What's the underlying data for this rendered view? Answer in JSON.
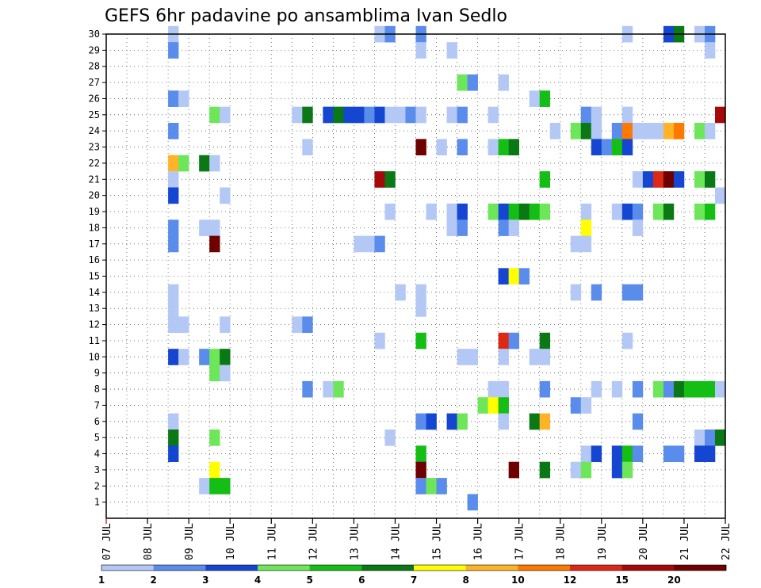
{
  "chart_data": {
    "type": "heatmap",
    "title": "GEFS 6hr padavine po ansamblima Ivan Sedlo",
    "xlabel": "",
    "ylabel": "",
    "x_ticks": [
      "07 JUL",
      "08 JUL",
      "09 JUL",
      "10 JUL",
      "11 JUL",
      "12 JUL",
      "13 JUL",
      "14 JUL",
      "15 JUL",
      "16 JUL",
      "17 JUL",
      "18 JUL",
      "19 JUL",
      "20 JUL",
      "21 JUL",
      "22 JUL"
    ],
    "xlim_days": [
      7,
      22
    ],
    "ylim": [
      0,
      30
    ],
    "y_ticks": [
      1,
      2,
      3,
      4,
      5,
      6,
      7,
      8,
      9,
      10,
      11,
      12,
      13,
      14,
      15,
      16,
      17,
      18,
      19,
      20,
      21,
      22,
      23,
      24,
      25,
      26,
      27,
      28,
      29,
      30
    ],
    "time_step_hours": 6,
    "grid": "dotted",
    "legend": {
      "placement": "bottom",
      "labels": [
        "1",
        "2",
        "3",
        "4",
        "5",
        "6",
        "7",
        "8",
        "10",
        "12",
        "15",
        "20"
      ],
      "colors": [
        "#b4c8f5",
        "#5a8ceb",
        "#1446d2",
        "#6ee65a",
        "#14be14",
        "#0a7814",
        "#ffff00",
        "#ffb428",
        "#ff7800",
        "#dc2814",
        "#a50a0a",
        "#6e0000"
      ]
    },
    "cells_note": "each entry: [member, day_of_july_start (1/4 day steps), intensity_class 1-12]",
    "cells": [
      [
        30,
        8.5,
        1
      ],
      [
        30,
        13.5,
        1
      ],
      [
        30,
        13.75,
        2
      ],
      [
        30,
        14.5,
        2
      ],
      [
        30,
        19.5,
        1
      ],
      [
        30,
        20.5,
        3
      ],
      [
        30,
        20.75,
        6
      ],
      [
        30,
        21.25,
        1
      ],
      [
        30,
        21.5,
        2
      ],
      [
        29,
        8.5,
        2
      ],
      [
        29,
        14.5,
        1
      ],
      [
        29,
        15.25,
        1
      ],
      [
        29,
        21.5,
        1
      ],
      [
        27,
        15.5,
        4
      ],
      [
        27,
        15.75,
        2
      ],
      [
        27,
        16.5,
        1
      ],
      [
        26,
        8.5,
        2
      ],
      [
        26,
        8.75,
        1
      ],
      [
        26,
        17.25,
        1
      ],
      [
        26,
        17.5,
        5
      ],
      [
        25,
        9.5,
        4
      ],
      [
        25,
        9.75,
        1
      ],
      [
        25,
        11.5,
        1
      ],
      [
        25,
        11.75,
        6
      ],
      [
        25,
        12.25,
        3
      ],
      [
        25,
        12.5,
        6
      ],
      [
        25,
        12.75,
        3
      ],
      [
        25,
        13,
        3
      ],
      [
        25,
        13.25,
        2
      ],
      [
        25,
        13.5,
        3
      ],
      [
        25,
        13.75,
        1
      ],
      [
        25,
        14,
        1
      ],
      [
        25,
        14.25,
        2
      ],
      [
        25,
        14.5,
        1
      ],
      [
        25,
        15.25,
        1
      ],
      [
        25,
        15.5,
        2
      ],
      [
        25,
        16.25,
        1
      ],
      [
        25,
        18.5,
        2
      ],
      [
        25,
        18.75,
        1
      ],
      [
        25,
        19.5,
        1
      ],
      [
        25,
        21.75,
        11
      ],
      [
        24,
        8.5,
        2
      ],
      [
        24,
        17.75,
        1
      ],
      [
        24,
        18.25,
        4
      ],
      [
        24,
        18.5,
        6
      ],
      [
        24,
        18.75,
        1
      ],
      [
        24,
        19.25,
        2
      ],
      [
        24,
        19.5,
        9
      ],
      [
        24,
        19.75,
        1
      ],
      [
        24,
        20,
        1
      ],
      [
        24,
        20.25,
        1
      ],
      [
        24,
        20.5,
        8
      ],
      [
        24,
        20.75,
        9
      ],
      [
        24,
        21.25,
        4
      ],
      [
        24,
        21.5,
        1
      ],
      [
        23,
        11.75,
        1
      ],
      [
        23,
        14.5,
        12
      ],
      [
        23,
        15,
        1
      ],
      [
        23,
        15.5,
        2
      ],
      [
        23,
        16.25,
        1
      ],
      [
        23,
        16.5,
        5
      ],
      [
        23,
        16.75,
        6
      ],
      [
        23,
        18.75,
        3
      ],
      [
        23,
        19,
        2
      ],
      [
        23,
        19.25,
        5
      ],
      [
        23,
        19.5,
        3
      ],
      [
        22,
        8.5,
        8
      ],
      [
        22,
        8.75,
        4
      ],
      [
        22,
        9.25,
        6
      ],
      [
        22,
        9.5,
        1
      ],
      [
        21,
        8.5,
        1
      ],
      [
        21,
        13.5,
        11
      ],
      [
        21,
        13.75,
        6
      ],
      [
        21,
        17.5,
        5
      ],
      [
        21,
        19.75,
        1
      ],
      [
        21,
        20,
        3
      ],
      [
        21,
        20.25,
        10
      ],
      [
        21,
        20.5,
        12
      ],
      [
        21,
        20.75,
        3
      ],
      [
        21,
        21.25,
        4
      ],
      [
        21,
        21.5,
        6
      ],
      [
        20,
        8.5,
        3
      ],
      [
        20,
        9.75,
        1
      ],
      [
        20,
        21.75,
        1
      ],
      [
        19,
        13.75,
        1
      ],
      [
        19,
        14.75,
        1
      ],
      [
        19,
        15.25,
        1
      ],
      [
        19,
        15.5,
        3
      ],
      [
        19,
        16.25,
        4
      ],
      [
        19,
        16.5,
        3
      ],
      [
        19,
        16.75,
        5
      ],
      [
        19,
        17,
        6
      ],
      [
        19,
        17.25,
        5
      ],
      [
        19,
        17.5,
        4
      ],
      [
        19,
        18.5,
        1
      ],
      [
        19,
        19.25,
        1
      ],
      [
        19,
        19.5,
        3
      ],
      [
        19,
        19.75,
        2
      ],
      [
        19,
        20.25,
        4
      ],
      [
        19,
        20.5,
        6
      ],
      [
        19,
        21.25,
        4
      ],
      [
        19,
        21.5,
        5
      ],
      [
        18,
        8.5,
        2
      ],
      [
        18,
        9.25,
        1
      ],
      [
        18,
        9.5,
        1
      ],
      [
        18,
        15.25,
        1
      ],
      [
        18,
        15.5,
        2
      ],
      [
        18,
        16.5,
        2
      ],
      [
        18,
        16.75,
        1
      ],
      [
        18,
        18.5,
        7
      ],
      [
        18,
        19.75,
        1
      ],
      [
        17,
        8.5,
        2
      ],
      [
        17,
        9.5,
        12
      ],
      [
        17,
        13,
        1
      ],
      [
        17,
        13.25,
        1
      ],
      [
        17,
        13.5,
        2
      ],
      [
        17,
        18.25,
        1
      ],
      [
        17,
        18.5,
        1
      ],
      [
        15,
        16.5,
        3
      ],
      [
        15,
        16.75,
        7
      ],
      [
        15,
        17,
        2
      ],
      [
        14,
        8.5,
        1
      ],
      [
        14,
        14,
        1
      ],
      [
        14,
        14.5,
        1
      ],
      [
        14,
        18.25,
        1
      ],
      [
        14,
        18.75,
        2
      ],
      [
        14,
        19.5,
        2
      ],
      [
        14,
        19.75,
        2
      ],
      [
        13,
        8.5,
        1
      ],
      [
        13,
        14.5,
        1
      ],
      [
        12,
        8.5,
        1
      ],
      [
        12,
        8.75,
        1
      ],
      [
        12,
        9.75,
        1
      ],
      [
        12,
        11.5,
        1
      ],
      [
        12,
        11.75,
        2
      ],
      [
        11,
        13.5,
        1
      ],
      [
        11,
        14.5,
        5
      ],
      [
        11,
        16.5,
        10
      ],
      [
        11,
        16.75,
        2
      ],
      [
        11,
        17.5,
        6
      ],
      [
        11,
        19.5,
        1
      ],
      [
        10,
        8.5,
        3
      ],
      [
        10,
        8.75,
        1
      ],
      [
        10,
        9.25,
        2
      ],
      [
        10,
        9.5,
        4
      ],
      [
        10,
        9.75,
        6
      ],
      [
        10,
        15.5,
        1
      ],
      [
        10,
        15.75,
        1
      ],
      [
        10,
        16.5,
        1
      ],
      [
        10,
        17.25,
        1
      ],
      [
        10,
        17.5,
        1
      ],
      [
        9,
        9.5,
        4
      ],
      [
        9,
        9.75,
        1
      ],
      [
        8,
        11.75,
        2
      ],
      [
        8,
        12.25,
        1
      ],
      [
        8,
        12.5,
        4
      ],
      [
        8,
        16.25,
        1
      ],
      [
        8,
        16.5,
        1
      ],
      [
        8,
        17.5,
        2
      ],
      [
        8,
        18.75,
        1
      ],
      [
        8,
        19.25,
        1
      ],
      [
        8,
        19.75,
        2
      ],
      [
        8,
        20.25,
        4
      ],
      [
        8,
        20.5,
        2
      ],
      [
        8,
        20.75,
        6
      ],
      [
        8,
        21,
        5
      ],
      [
        8,
        21.25,
        5
      ],
      [
        8,
        21.5,
        5
      ],
      [
        8,
        21.75,
        1
      ],
      [
        7,
        16,
        4
      ],
      [
        7,
        16.25,
        7
      ],
      [
        7,
        16.5,
        5
      ],
      [
        7,
        18.25,
        2
      ],
      [
        7,
        18.5,
        1
      ],
      [
        6,
        8.5,
        1
      ],
      [
        6,
        14.5,
        2
      ],
      [
        6,
        14.75,
        3
      ],
      [
        6,
        15.25,
        3
      ],
      [
        6,
        15.5,
        4
      ],
      [
        6,
        16.5,
        1
      ],
      [
        6,
        17.25,
        6
      ],
      [
        6,
        17.5,
        8
      ],
      [
        6,
        19.75,
        2
      ],
      [
        5,
        8.5,
        6
      ],
      [
        5,
        9.5,
        4
      ],
      [
        5,
        13.75,
        1
      ],
      [
        5,
        21.25,
        1
      ],
      [
        5,
        21.5,
        2
      ],
      [
        5,
        21.75,
        6
      ],
      [
        5,
        22,
        2
      ],
      [
        4,
        8.5,
        3
      ],
      [
        4,
        14.5,
        5
      ],
      [
        4,
        18.5,
        1
      ],
      [
        4,
        18.75,
        3
      ],
      [
        4,
        19.25,
        3
      ],
      [
        4,
        19.5,
        5
      ],
      [
        4,
        19.75,
        2
      ],
      [
        4,
        20.5,
        2
      ],
      [
        4,
        20.75,
        2
      ],
      [
        4,
        21.25,
        3
      ],
      [
        4,
        21.5,
        3
      ],
      [
        3,
        9.5,
        7
      ],
      [
        3,
        14.5,
        12
      ],
      [
        3,
        16.75,
        12
      ],
      [
        3,
        17.5,
        6
      ],
      [
        3,
        18.25,
        1
      ],
      [
        3,
        18.5,
        4
      ],
      [
        3,
        19.25,
        3
      ],
      [
        3,
        19.5,
        4
      ],
      [
        2,
        9.25,
        1
      ],
      [
        2,
        9.5,
        5
      ],
      [
        2,
        9.75,
        5
      ],
      [
        2,
        14.5,
        2
      ],
      [
        2,
        14.75,
        4
      ],
      [
        2,
        15,
        2
      ],
      [
        1,
        15.75,
        2
      ]
    ]
  }
}
